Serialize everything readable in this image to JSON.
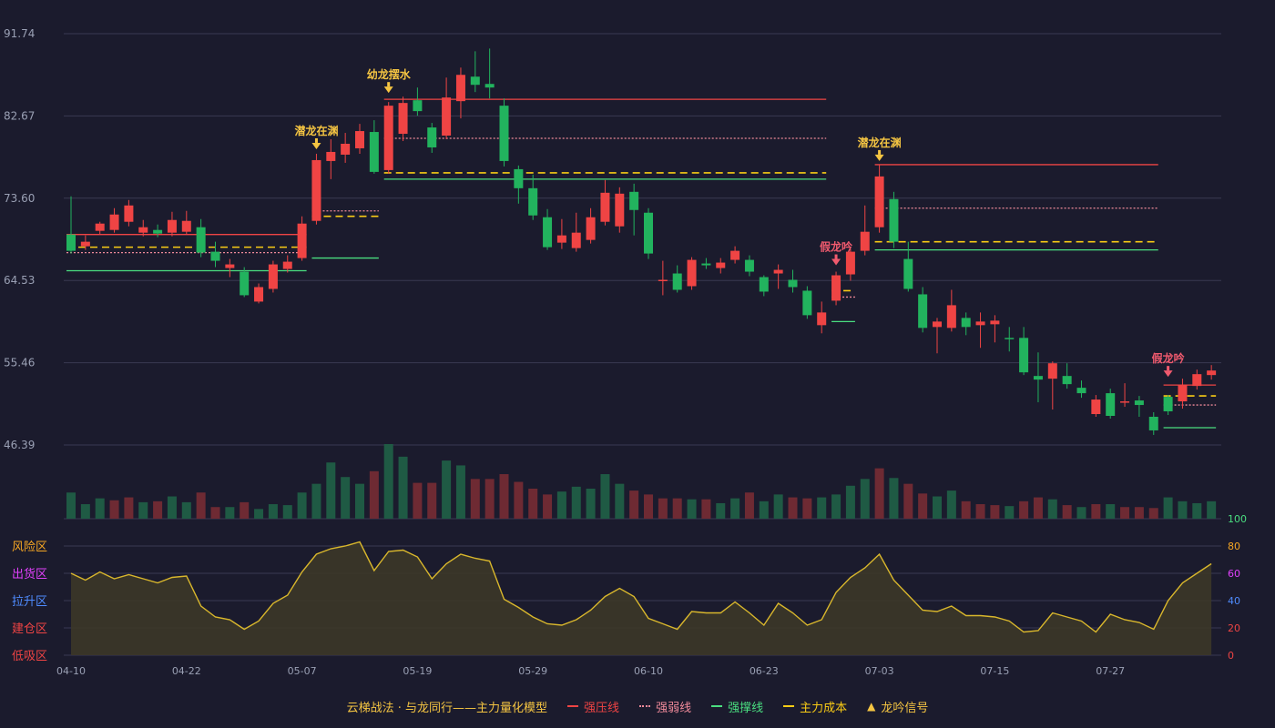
{
  "chart_data": {
    "type": "candlestick",
    "price_axis": {
      "ticks": [
        91.74,
        82.67,
        73.6,
        64.53,
        55.46,
        46.39
      ],
      "range": [
        46.39,
        91.74
      ]
    },
    "oscillator_axis": {
      "ticks": [
        100,
        80,
        60,
        40,
        20,
        0
      ],
      "range": [
        0,
        100
      ]
    },
    "zone_labels": [
      "风险区",
      "出货区",
      "拉升区",
      "建仓区",
      "低吸区"
    ],
    "x_tick_labels": [
      {
        "i": 0,
        "label": "04-10"
      },
      {
        "i": 8,
        "label": "04-22"
      },
      {
        "i": 16,
        "label": "05-07"
      },
      {
        "i": 24,
        "label": "05-19"
      },
      {
        "i": 32,
        "label": "05-29"
      },
      {
        "i": 40,
        "label": "06-10"
      },
      {
        "i": 48,
        "label": "06-23"
      },
      {
        "i": 56,
        "label": "07-03"
      },
      {
        "i": 64,
        "label": "07-15"
      },
      {
        "i": 72,
        "label": "07-27"
      }
    ],
    "candles": [
      [
        69.6,
        67.8,
        73.8,
        67.5
      ],
      [
        68.3,
        68.8,
        69.5,
        67.9
      ],
      [
        70.0,
        70.8,
        71.0,
        69.6
      ],
      [
        70.1,
        71.8,
        72.5,
        69.8
      ],
      [
        71.0,
        72.8,
        73.4,
        70.5
      ],
      [
        69.8,
        70.4,
        71.2,
        69.4
      ],
      [
        70.1,
        69.7,
        70.7,
        69.3
      ],
      [
        69.8,
        71.2,
        72.1,
        69.4
      ],
      [
        69.9,
        71.1,
        72.2,
        69.6
      ],
      [
        70.4,
        67.6,
        71.3,
        67.1
      ],
      [
        67.7,
        66.7,
        68.8,
        66.0
      ],
      [
        65.9,
        66.3,
        66.9,
        64.9
      ],
      [
        65.5,
        62.9,
        66.0,
        62.7
      ],
      [
        62.2,
        63.8,
        64.2,
        62.0
      ],
      [
        63.6,
        66.3,
        66.7,
        63.2
      ],
      [
        65.8,
        66.6,
        67.3,
        65.4
      ],
      [
        67.0,
        70.8,
        71.6,
        66.7
      ],
      [
        71.1,
        77.8,
        78.5,
        70.7
      ],
      [
        77.7,
        78.7,
        80.1,
        75.7
      ],
      [
        78.4,
        79.6,
        80.8,
        77.5
      ],
      [
        79.1,
        81.0,
        81.8,
        78.5
      ],
      [
        80.9,
        76.5,
        82.2,
        76.3
      ],
      [
        76.7,
        83.8,
        84.2,
        76.3
      ],
      [
        80.7,
        84.1,
        84.8,
        79.9
      ],
      [
        84.4,
        83.2,
        85.8,
        82.7
      ],
      [
        81.4,
        79.2,
        81.9,
        78.6
      ],
      [
        80.5,
        84.7,
        86.9,
        80.1
      ],
      [
        84.3,
        87.2,
        88.0,
        82.4
      ],
      [
        87.0,
        86.1,
        89.8,
        85.3
      ],
      [
        86.2,
        85.8,
        90.1,
        84.6
      ],
      [
        83.8,
        77.7,
        84.6,
        77.1
      ],
      [
        76.8,
        74.7,
        77.2,
        73.0
      ],
      [
        74.7,
        71.7,
        76.2,
        71.2
      ],
      [
        71.5,
        68.2,
        72.4,
        67.9
      ],
      [
        68.7,
        69.5,
        71.3,
        68.0
      ],
      [
        68.1,
        69.8,
        72.0,
        67.7
      ],
      [
        69.0,
        71.5,
        72.5,
        68.6
      ],
      [
        71.0,
        74.2,
        75.6,
        70.6
      ],
      [
        70.5,
        74.1,
        74.8,
        69.8
      ],
      [
        74.3,
        72.3,
        75.2,
        69.5
      ],
      [
        72.0,
        67.5,
        72.5,
        66.9
      ],
      [
        64.6,
        64.6,
        66.7,
        62.9
      ],
      [
        65.3,
        63.5,
        66.2,
        63.2
      ],
      [
        63.9,
        66.8,
        67.1,
        63.5
      ],
      [
        66.4,
        66.2,
        67.0,
        65.8
      ],
      [
        65.9,
        66.5,
        67.0,
        65.3
      ],
      [
        66.8,
        67.8,
        68.3,
        66.4
      ],
      [
        66.8,
        65.5,
        67.3,
        65.0
      ],
      [
        64.9,
        63.3,
        65.1,
        62.8
      ],
      [
        65.3,
        65.7,
        66.3,
        63.6
      ],
      [
        64.6,
        63.8,
        65.7,
        63.2
      ],
      [
        63.4,
        60.7,
        63.9,
        60.3
      ],
      [
        59.6,
        61.0,
        62.2,
        58.7
      ],
      [
        62.3,
        65.1,
        65.5,
        61.8
      ],
      [
        65.2,
        67.7,
        68.0,
        64.5
      ],
      [
        67.8,
        69.9,
        72.8,
        67.3
      ],
      [
        70.4,
        76.0,
        77.3,
        69.8
      ],
      [
        73.5,
        68.8,
        74.3,
        68.1
      ],
      [
        66.9,
        63.6,
        68.8,
        63.3
      ],
      [
        63.0,
        59.3,
        63.8,
        58.8
      ],
      [
        59.4,
        60.0,
        60.4,
        56.5
      ],
      [
        59.3,
        61.8,
        63.5,
        58.9
      ],
      [
        60.4,
        59.4,
        61.0,
        58.5
      ],
      [
        59.6,
        60.0,
        61.0,
        57.1
      ],
      [
        59.7,
        60.1,
        60.7,
        57.7
      ],
      [
        58.2,
        58.1,
        59.4,
        56.7
      ],
      [
        58.2,
        54.4,
        59.4,
        54.1
      ],
      [
        54.0,
        53.6,
        56.6,
        51.1
      ],
      [
        53.7,
        55.4,
        55.6,
        50.3
      ],
      [
        54.0,
        53.1,
        55.4,
        52.6
      ],
      [
        52.7,
        52.1,
        53.5,
        51.6
      ],
      [
        49.8,
        51.4,
        51.9,
        49.5
      ],
      [
        52.1,
        49.6,
        52.6,
        49.3
      ],
      [
        51.1,
        51.2,
        53.2,
        50.6
      ],
      [
        51.3,
        50.8,
        51.8,
        49.5
      ],
      [
        49.5,
        48.0,
        50.0,
        47.5
      ],
      [
        51.7,
        50.1,
        51.9,
        49.7
      ],
      [
        51.2,
        53.0,
        53.7,
        50.4
      ],
      [
        52.9,
        54.2,
        54.7,
        52.5
      ],
      [
        54.1,
        54.6,
        55.2,
        53.6
      ]
    ],
    "volume": [
      {
        "i": 0,
        "v": 27,
        "up": false
      },
      {
        "i": 1,
        "v": 15,
        "up": false
      },
      {
        "i": 2,
        "v": 21,
        "up": false
      },
      {
        "i": 3,
        "v": 19,
        "up": true
      },
      {
        "i": 4,
        "v": 22,
        "up": true
      },
      {
        "i": 5,
        "v": 17,
        "up": false
      },
      {
        "i": 6,
        "v": 18,
        "up": true
      },
      {
        "i": 7,
        "v": 23,
        "up": false
      },
      {
        "i": 8,
        "v": 17,
        "up": false
      },
      {
        "i": 9,
        "v": 27,
        "up": true
      },
      {
        "i": 10,
        "v": 12,
        "up": true
      },
      {
        "i": 11,
        "v": 12,
        "up": false
      },
      {
        "i": 12,
        "v": 17,
        "up": true
      },
      {
        "i": 13,
        "v": 10,
        "up": false
      },
      {
        "i": 14,
        "v": 15,
        "up": false
      },
      {
        "i": 15,
        "v": 14,
        "up": false
      },
      {
        "i": 16,
        "v": 27,
        "up": false
      },
      {
        "i": 17,
        "v": 36,
        "up": false
      },
      {
        "i": 18,
        "v": 58,
        "up": false
      },
      {
        "i": 19,
        "v": 43,
        "up": false
      },
      {
        "i": 20,
        "v": 36,
        "up": false
      },
      {
        "i": 21,
        "v": 49,
        "up": true
      },
      {
        "i": 22,
        "v": 77,
        "up": false
      },
      {
        "i": 23,
        "v": 64,
        "up": false
      },
      {
        "i": 24,
        "v": 37,
        "up": true
      },
      {
        "i": 25,
        "v": 37,
        "up": true
      },
      {
        "i": 26,
        "v": 60,
        "up": false
      },
      {
        "i": 27,
        "v": 55,
        "up": false
      },
      {
        "i": 28,
        "v": 41,
        "up": true
      },
      {
        "i": 29,
        "v": 41,
        "up": true
      },
      {
        "i": 30,
        "v": 46,
        "up": true
      },
      {
        "i": 31,
        "v": 38,
        "up": true
      },
      {
        "i": 32,
        "v": 31,
        "up": true
      },
      {
        "i": 33,
        "v": 25,
        "up": true
      },
      {
        "i": 34,
        "v": 28,
        "up": false
      },
      {
        "i": 35,
        "v": 33,
        "up": false
      },
      {
        "i": 36,
        "v": 31,
        "up": false
      },
      {
        "i": 37,
        "v": 46,
        "up": false
      },
      {
        "i": 38,
        "v": 36,
        "up": false
      },
      {
        "i": 39,
        "v": 29,
        "up": true
      },
      {
        "i": 40,
        "v": 25,
        "up": true
      },
      {
        "i": 41,
        "v": 21,
        "up": true
      },
      {
        "i": 42,
        "v": 21,
        "up": true
      },
      {
        "i": 43,
        "v": 20,
        "up": false
      },
      {
        "i": 44,
        "v": 20,
        "up": true
      },
      {
        "i": 45,
        "v": 16,
        "up": false
      },
      {
        "i": 46,
        "v": 21,
        "up": false
      },
      {
        "i": 47,
        "v": 27,
        "up": true
      },
      {
        "i": 48,
        "v": 18,
        "up": false
      },
      {
        "i": 49,
        "v": 25,
        "up": false
      },
      {
        "i": 50,
        "v": 22,
        "up": true
      },
      {
        "i": 51,
        "v": 21,
        "up": true
      },
      {
        "i": 52,
        "v": 22,
        "up": false
      },
      {
        "i": 53,
        "v": 25,
        "up": false
      },
      {
        "i": 54,
        "v": 34,
        "up": false
      },
      {
        "i": 55,
        "v": 41,
        "up": false
      },
      {
        "i": 56,
        "v": 52,
        "up": true
      },
      {
        "i": 57,
        "v": 42,
        "up": false
      },
      {
        "i": 58,
        "v": 36,
        "up": true
      },
      {
        "i": 59,
        "v": 26,
        "up": true
      },
      {
        "i": 60,
        "v": 23,
        "up": false
      },
      {
        "i": 61,
        "v": 29,
        "up": false
      },
      {
        "i": 62,
        "v": 18,
        "up": true
      },
      {
        "i": 63,
        "v": 15,
        "up": true
      },
      {
        "i": 64,
        "v": 14,
        "up": true
      },
      {
        "i": 65,
        "v": 13,
        "up": false
      },
      {
        "i": 66,
        "v": 18,
        "up": true
      },
      {
        "i": 67,
        "v": 22,
        "up": true
      },
      {
        "i": 68,
        "v": 20,
        "up": false
      },
      {
        "i": 69,
        "v": 14,
        "up": true
      },
      {
        "i": 70,
        "v": 12,
        "up": false
      },
      {
        "i": 71,
        "v": 15,
        "up": true
      },
      {
        "i": 72,
        "v": 15,
        "up": false
      },
      {
        "i": 73,
        "v": 12,
        "up": true
      },
      {
        "i": 74,
        "v": 12,
        "up": true
      },
      {
        "i": 75,
        "v": 11,
        "up": true
      },
      {
        "i": 76,
        "v": 22,
        "up": false
      },
      {
        "i": 77,
        "v": 18,
        "up": false
      },
      {
        "i": 78,
        "v": 16,
        "up": false
      },
      {
        "i": 79,
        "v": 18,
        "up": false
      }
    ],
    "oscillator": [
      60,
      55,
      61,
      56,
      59,
      56,
      53,
      57,
      58,
      36,
      28,
      26,
      19,
      25,
      38,
      44,
      61,
      74,
      78,
      80,
      83,
      62,
      76,
      77,
      72,
      56,
      67,
      74,
      71,
      69,
      41,
      35,
      28,
      23,
      22,
      26,
      33,
      43,
      49,
      43,
      27,
      23,
      19,
      32,
      31,
      31,
      39,
      31,
      22,
      38,
      31,
      22,
      26,
      46,
      57,
      64,
      74,
      55,
      44,
      33,
      32,
      36,
      29,
      29,
      28,
      25,
      17,
      18,
      31,
      28,
      25,
      17,
      30,
      26,
      24,
      19,
      40,
      53,
      60,
      67
    ],
    "levels": [
      {
        "kind": "strong_press",
        "from": 0,
        "to": 16,
        "y": 69.6
      },
      {
        "kind": "weak",
        "from": 0,
        "to": 16,
        "y": 67.6
      },
      {
        "kind": "main_cost",
        "from": 0,
        "to": 16,
        "y": 68.2
      },
      {
        "kind": "support",
        "from": 0,
        "to": 16,
        "y": 65.6
      },
      {
        "kind": "weak",
        "from": 17,
        "to": 21,
        "y": 72.2
      },
      {
        "kind": "main_cost",
        "from": 17,
        "to": 21,
        "y": 71.6
      },
      {
        "kind": "support",
        "from": 17,
        "to": 21,
        "y": 67.0
      },
      {
        "kind": "strong_press",
        "from": 22,
        "to": 52,
        "y": 84.5
      },
      {
        "kind": "weak",
        "from": 22,
        "to": 52,
        "y": 80.2
      },
      {
        "kind": "main_cost",
        "from": 22,
        "to": 52,
        "y": 76.4
      },
      {
        "kind": "support",
        "from": 22,
        "to": 52,
        "y": 75.7
      },
      {
        "kind": "main_cost",
        "from": 53,
        "to": 54,
        "y": 63.4
      },
      {
        "kind": "weak",
        "from": 53,
        "to": 54,
        "y": 62.7
      },
      {
        "kind": "support",
        "from": 53,
        "to": 54,
        "y": 60.0
      },
      {
        "kind": "strong_press",
        "from": 56,
        "to": 75,
        "y": 77.3
      },
      {
        "kind": "weak",
        "from": 56,
        "to": 75,
        "y": 72.5
      },
      {
        "kind": "main_cost",
        "from": 56,
        "to": 75,
        "y": 68.8
      },
      {
        "kind": "support",
        "from": 56,
        "to": 75,
        "y": 67.9
      },
      {
        "kind": "strong_press",
        "from": 76,
        "to": 79,
        "y": 53.0
      },
      {
        "kind": "main_cost",
        "from": 76,
        "to": 79,
        "y": 51.8
      },
      {
        "kind": "weak",
        "from": 76,
        "to": 79,
        "y": 50.8
      },
      {
        "kind": "support",
        "from": 76,
        "to": 79,
        "y": 48.3
      }
    ],
    "signals": [
      {
        "i": 17,
        "label": "潜龙在渊",
        "kind": "gold",
        "y": 78.8
      },
      {
        "i": 22,
        "label": "幼龙摆水",
        "kind": "gold",
        "y": 85.0
      },
      {
        "i": 53,
        "label": "假龙吟",
        "kind": "pink",
        "y": 66.0
      },
      {
        "i": 56,
        "label": "潜龙在渊",
        "kind": "gold",
        "y": 77.5
      },
      {
        "i": 76,
        "label": "假龙吟",
        "kind": "pink",
        "y": 53.7
      }
    ],
    "colors": {
      "bg": "#1b1b2d",
      "grid": "#3a3a52",
      "axis_text": "#9aa0b4",
      "up": "#ef4444",
      "down": "#22b35e",
      "vol_up": "#6e2a33",
      "vol_down": "#1f5a44",
      "strong_press": "#ef4444",
      "weak": "#f08a9a",
      "support": "#4ade80",
      "main_cost": "#facc15",
      "gold": "#f5c542",
      "pink": "#f05a6e",
      "osc_line": "#d9b72c",
      "osc_fill": "#3c3728"
    }
  },
  "legend": {
    "model": "云梯战法 · 与龙同行——主力量化模型",
    "items": [
      {
        "label": "强压线",
        "color": "#ef4444",
        "style": "solid"
      },
      {
        "label": "强弱线",
        "color": "#f08a9a",
        "style": "dotted"
      },
      {
        "label": "强撑线",
        "color": "#4ade80",
        "style": "solid"
      },
      {
        "label": "主力成本",
        "color": "#facc15",
        "style": "dashed"
      },
      {
        "label": "龙吟信号",
        "color": "#f5c542",
        "style": "triangle"
      }
    ]
  }
}
